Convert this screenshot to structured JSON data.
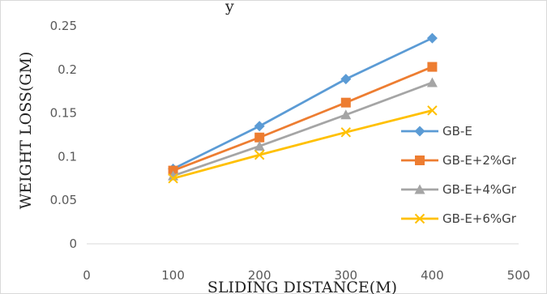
{
  "chart_data": {
    "type": "line",
    "title": "y",
    "xlabel": "SLIDING DISTANCE(M)",
    "ylabel": "WEIGHT LOSS(GM)",
    "xlim": [
      0,
      500
    ],
    "ylim": [
      0,
      0.25
    ],
    "x_ticks": [
      "0",
      "100",
      "200",
      "300",
      "400",
      "500"
    ],
    "y_ticks": [
      "0",
      "0.05",
      "0.1",
      "0.15",
      "0.2",
      "0.25"
    ],
    "grid": false,
    "legend_position": "right",
    "x": [
      100,
      200,
      300,
      400
    ],
    "series": [
      {
        "name": "GB-E",
        "values": [
          0.086,
          0.135,
          0.189,
          0.236
        ],
        "color": "#5B9BD5",
        "marker": "diamond"
      },
      {
        "name": "GB-E+2%Gr",
        "values": [
          0.084,
          0.122,
          0.162,
          0.203
        ],
        "color": "#ED7D31",
        "marker": "square"
      },
      {
        "name": "GB-E+4%Gr",
        "values": [
          0.078,
          0.112,
          0.148,
          0.185
        ],
        "color": "#A5A5A5",
        "marker": "triangle"
      },
      {
        "name": "GB-E+6%Gr",
        "values": [
          0.075,
          0.102,
          0.128,
          0.153
        ],
        "color": "#FFC000",
        "marker": "x"
      }
    ]
  }
}
